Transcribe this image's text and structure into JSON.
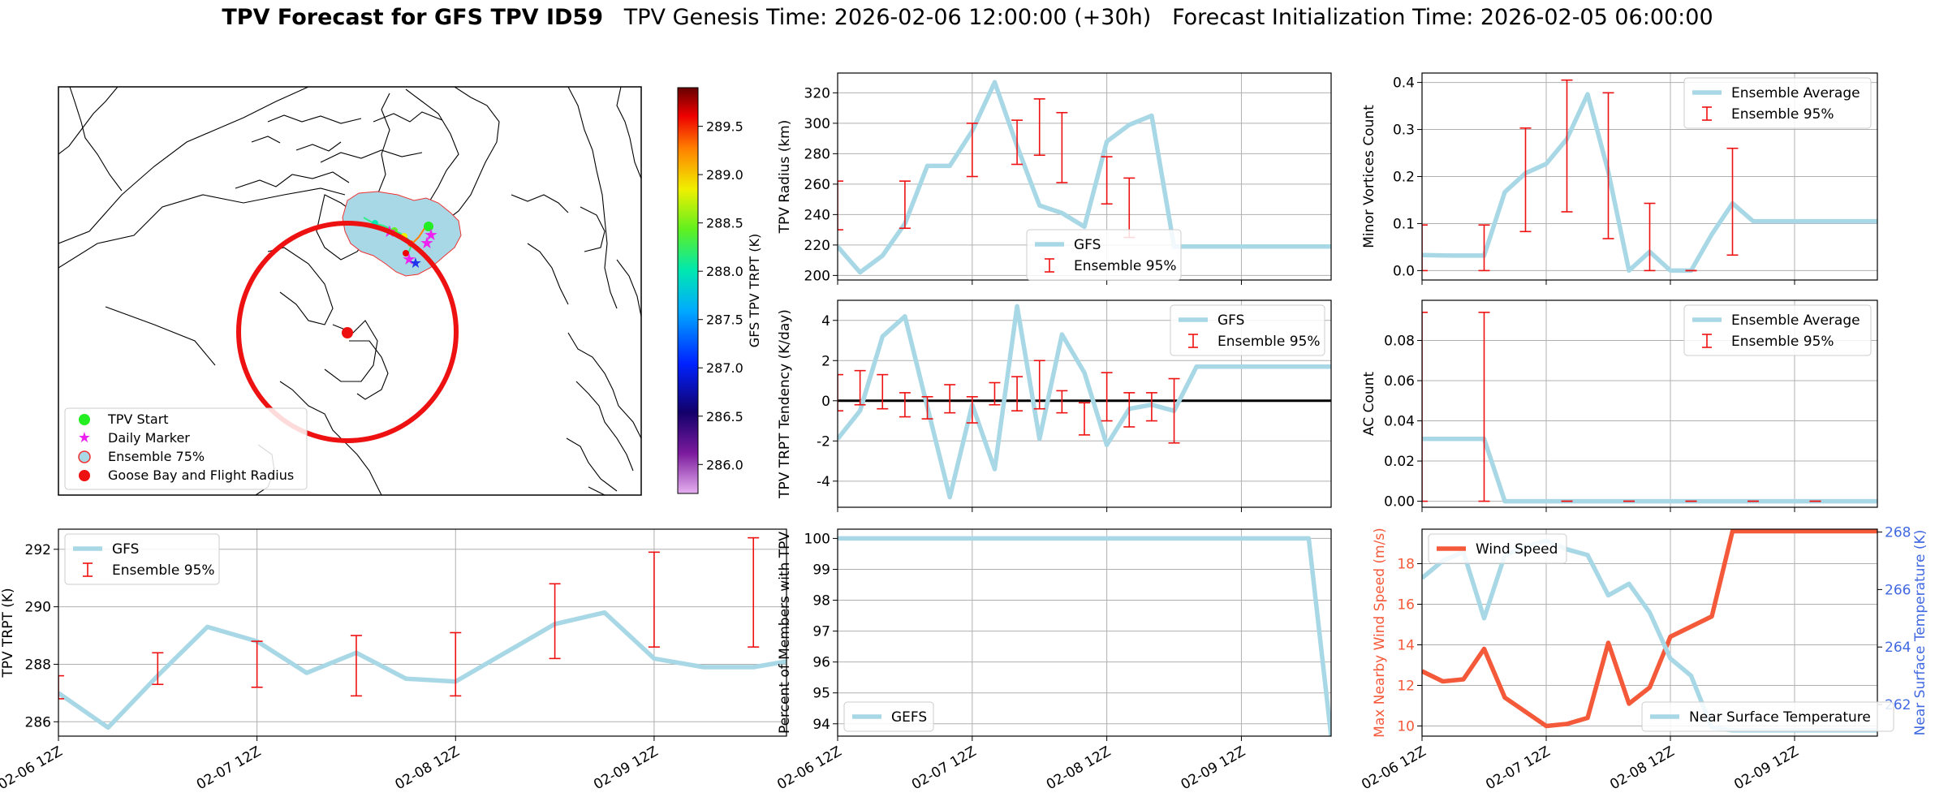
{
  "title": {
    "bold": "TPV Forecast for GFS TPV ID59",
    "genesis": "TPV Genesis Time: 2026-02-06 12:00:00 (+30h)",
    "init": "Forecast Initialization Time: 2026-02-05 06:00:00"
  },
  "time_ticks": [
    "02-06 12Z",
    "02-07 12Z",
    "02-08 12Z",
    "02-09 12Z"
  ],
  "map": {
    "colorbar_label": "GFS TPV TRPT (K)",
    "colorbar_ticks": [
      286.0,
      286.5,
      287.0,
      287.5,
      288.0,
      288.5,
      289.0,
      289.5
    ],
    "colorbar_range": [
      285.7,
      289.9
    ],
    "legend": [
      "TPV Start",
      "Daily Marker",
      "Ensemble 75%",
      "Goose Bay and Flight Radius"
    ],
    "colors": {
      "start": "#22ee22",
      "marker": "#ee22ee",
      "ensemble": "#a8d8e6",
      "goose": "#ee1111"
    }
  },
  "chart_data": [
    {
      "id": "trpt",
      "type": "line",
      "xlim": [
        0,
        11
      ],
      "ylim": [
        285.5,
        292.7
      ],
      "yticks": [
        286,
        288,
        290,
        292
      ],
      "ylabel": "TPV TRPT (K)",
      "legend": [
        "GFS",
        "Ensemble 95%"
      ],
      "legend_position": "top-left",
      "series": [
        {
          "name": "GFS",
          "x": [
            0,
            0.75,
            1.5,
            2.25,
            3,
            3.75,
            4.5,
            5.25,
            6,
            6.75,
            7.5,
            8.25,
            9,
            9.75,
            10.5,
            11
          ],
          "y": [
            287.0,
            285.8,
            287.6,
            289.3,
            288.8,
            287.7,
            288.4,
            287.5,
            287.4,
            288.4,
            289.4,
            289.8,
            288.2,
            287.9,
            287.9,
            288.1
          ]
        }
      ],
      "errorbars": [
        {
          "x": 0,
          "lo": 286.8,
          "hi": 287.6
        },
        {
          "x": 1.5,
          "lo": 287.3,
          "hi": 288.4
        },
        {
          "x": 3,
          "lo": 287.2,
          "hi": 288.8
        },
        {
          "x": 4.5,
          "lo": 286.9,
          "hi": 289.0
        },
        {
          "x": 6,
          "lo": 286.9,
          "hi": 289.1
        },
        {
          "x": 7.5,
          "lo": 288.2,
          "hi": 290.8
        },
        {
          "x": 9,
          "lo": 288.6,
          "hi": 291.9
        },
        {
          "x": 10.5,
          "lo": 288.6,
          "hi": 292.4
        }
      ]
    },
    {
      "id": "radius",
      "type": "line",
      "xlim": [
        0,
        11
      ],
      "ylim": [
        197,
        333
      ],
      "yticks": [
        200,
        220,
        240,
        260,
        280,
        300,
        320
      ],
      "ylabel": "TPV Radius (km)",
      "legend": [
        "GFS",
        "Ensemble 95%"
      ],
      "legend_position": "bottom-center",
      "series": [
        {
          "name": "GFS",
          "x": [
            0,
            0.5,
            1,
            1.5,
            2,
            2.5,
            3,
            3.5,
            4,
            4.5,
            5,
            5.5,
            6,
            6.5,
            7,
            7.5,
            8,
            8.5,
            9,
            9.5,
            10,
            10.5,
            11
          ],
          "y": [
            219,
            202,
            213,
            234,
            272,
            272,
            295,
            327,
            285,
            246,
            241,
            232,
            288,
            299,
            305,
            219,
            219,
            219,
            219,
            219,
            219,
            219,
            219
          ]
        }
      ],
      "errorbars": [
        {
          "x": 0,
          "lo": 230,
          "hi": 262
        },
        {
          "x": 1.5,
          "lo": 231,
          "hi": 262
        },
        {
          "x": 3,
          "lo": 265,
          "hi": 300
        },
        {
          "x": 4,
          "lo": 273,
          "hi": 302
        },
        {
          "x": 4.5,
          "lo": 279,
          "hi": 316
        },
        {
          "x": 5,
          "lo": 261,
          "hi": 307
        },
        {
          "x": 6,
          "lo": 247,
          "hi": 278
        },
        {
          "x": 6.5,
          "lo": 225,
          "hi": 264
        }
      ]
    },
    {
      "id": "tendency",
      "type": "line",
      "xlim": [
        0,
        11
      ],
      "ylim": [
        -5.3,
        5.0
      ],
      "yticks": [
        -4,
        -2,
        0,
        2,
        4
      ],
      "ylabel": "TPV TRPT Tendency (K/day)",
      "legend": [
        "GFS",
        "Ensemble 95%"
      ],
      "legend_position": "top-right",
      "series": [
        {
          "name": "GFS",
          "x": [
            0,
            0.5,
            1,
            1.5,
            2,
            2.5,
            3,
            3.5,
            4,
            4.5,
            5,
            5.5,
            6,
            6.5,
            7,
            7.5,
            8,
            8.5,
            9,
            9.5,
            10,
            10.5,
            11
          ],
          "y": [
            -1.9,
            -0.5,
            3.2,
            4.2,
            -0.3,
            -4.8,
            -0.2,
            -3.4,
            4.7,
            -1.9,
            3.3,
            1.4,
            -2.2,
            -0.4,
            -0.2,
            -0.5,
            1.7,
            1.7,
            1.7,
            1.7,
            1.7,
            1.7,
            1.7
          ]
        }
      ],
      "errorbars": [
        {
          "x": 0,
          "lo": -0.5,
          "hi": 1.3
        },
        {
          "x": 0.5,
          "lo": -0.2,
          "hi": 1.5
        },
        {
          "x": 1,
          "lo": -0.4,
          "hi": 1.3
        },
        {
          "x": 1.5,
          "lo": -0.8,
          "hi": 0.4
        },
        {
          "x": 2,
          "lo": -0.9,
          "hi": 0.2
        },
        {
          "x": 2.5,
          "lo": -0.6,
          "hi": 0.8
        },
        {
          "x": 3,
          "lo": -1.1,
          "hi": 0.2
        },
        {
          "x": 3.5,
          "lo": -0.2,
          "hi": 0.9
        },
        {
          "x": 4,
          "lo": -0.5,
          "hi": 1.2
        },
        {
          "x": 4.5,
          "lo": -0.4,
          "hi": 2.0
        },
        {
          "x": 5,
          "lo": -0.6,
          "hi": 0.5
        },
        {
          "x": 5.5,
          "lo": -1.7,
          "hi": -0.1
        },
        {
          "x": 6,
          "lo": -1.0,
          "hi": 1.4
        },
        {
          "x": 6.5,
          "lo": -1.3,
          "hi": 0.4
        },
        {
          "x": 7,
          "lo": -1.0,
          "hi": 0.4
        },
        {
          "x": 7.5,
          "lo": -2.1,
          "hi": 1.1
        }
      ],
      "zero_line": 0
    },
    {
      "id": "percent",
      "type": "line",
      "xlim": [
        0,
        11
      ],
      "ylim": [
        93.6,
        100.3
      ],
      "yticks": [
        94,
        95,
        96,
        97,
        98,
        99,
        100
      ],
      "ylabel": "Percent of Members with TPV",
      "legend": [
        "GEFS"
      ],
      "legend_position": "bottom-left",
      "series": [
        {
          "name": "GEFS",
          "x": [
            0,
            10.5,
            11
          ],
          "y": [
            100,
            100,
            93.6
          ]
        }
      ]
    },
    {
      "id": "minor",
      "type": "line",
      "xlim": [
        0,
        11
      ],
      "ylim": [
        -0.02,
        0.42
      ],
      "yticks": [
        0.0,
        0.1,
        0.2,
        0.3,
        0.4
      ],
      "ylabel": "Minor Vortices Count",
      "legend": [
        "Ensemble Average",
        "Ensemble 95%"
      ],
      "legend_position": "top-right",
      "series": [
        {
          "name": "Ensemble Average",
          "x": [
            0,
            0.75,
            1.5,
            2,
            2.5,
            3,
            3.5,
            4,
            4.5,
            5,
            5.5,
            6,
            6.5,
            7,
            7.5,
            8,
            8.5,
            9,
            9.5,
            10,
            10.5,
            11
          ],
          "y": [
            0.033,
            0.032,
            0.032,
            0.167,
            0.207,
            0.227,
            0.28,
            0.375,
            0.21,
            0.0,
            0.04,
            0.0,
            0.0,
            0.077,
            0.143,
            0.105,
            0.105,
            0.105,
            0.105,
            0.105,
            0.105,
            0.105
          ]
        }
      ],
      "errorbars": [
        {
          "x": 0,
          "lo": 0.0,
          "hi": 0.097
        },
        {
          "x": 1.5,
          "lo": 0.0,
          "hi": 0.097
        },
        {
          "x": 2.5,
          "lo": 0.083,
          "hi": 0.303
        },
        {
          "x": 3.5,
          "lo": 0.125,
          "hi": 0.405
        },
        {
          "x": 4.5,
          "lo": 0.068,
          "hi": 0.378
        },
        {
          "x": 5.5,
          "lo": 0.0,
          "hi": 0.143
        },
        {
          "x": 6.5,
          "lo": 0.0,
          "hi": 0.0
        },
        {
          "x": 7.5,
          "lo": 0.033,
          "hi": 0.26
        }
      ]
    },
    {
      "id": "ac",
      "type": "line",
      "xlim": [
        0,
        11
      ],
      "ylim": [
        -0.003,
        0.1
      ],
      "yticks": [
        0.0,
        0.02,
        0.04,
        0.06,
        0.08
      ],
      "ylabel": "AC Count",
      "legend": [
        "Ensemble Average",
        "Ensemble 95%"
      ],
      "legend_position": "top-right",
      "series": [
        {
          "name": "Ensemble Average",
          "x": [
            0,
            1.5,
            2,
            11
          ],
          "y": [
            0.031,
            0.031,
            0.0,
            0.0
          ]
        }
      ],
      "errorbars": [
        {
          "x": 0,
          "lo": 0.0,
          "hi": 0.094
        },
        {
          "x": 1.5,
          "lo": 0.0,
          "hi": 0.094
        },
        {
          "x": 3.5,
          "lo": 0.0,
          "hi": 0.0
        },
        {
          "x": 5,
          "lo": 0.0,
          "hi": 0.0
        },
        {
          "x": 6.5,
          "lo": 0.0,
          "hi": 0.0
        },
        {
          "x": 8,
          "lo": 0.0,
          "hi": 0.0
        },
        {
          "x": 9.5,
          "lo": 0.0,
          "hi": 0.0
        }
      ]
    },
    {
      "id": "wind",
      "type": "line",
      "xlim": [
        0,
        11
      ],
      "ylim": [
        9.5,
        19.7
      ],
      "yticks": [
        10,
        12,
        14,
        16,
        18
      ],
      "ylabel": "Max Nearby Wind Speed (m/s)",
      "ylim2": [
        260.9,
        268.1
      ],
      "yticks2": [
        262,
        264,
        266,
        268
      ],
      "ylabel2": "Near Surface Temperature (K)",
      "legend": [
        "Wind Speed",
        "Near Surface Temperature"
      ],
      "series": [
        {
          "name": "Wind Speed",
          "axis": "left",
          "x": [
            0,
            0.5,
            1,
            1.5,
            2,
            2.5,
            3,
            3.5,
            4,
            4.5,
            5,
            5.5,
            6,
            6.5,
            7,
            7.5,
            8,
            8.5,
            9,
            9.5,
            10,
            10.5,
            11
          ],
          "y": [
            12.7,
            12.2,
            12.3,
            13.8,
            11.4,
            10.7,
            10.0,
            10.1,
            10.4,
            14.1,
            11.1,
            11.9,
            14.4,
            14.9,
            15.4,
            19.6,
            19.6,
            19.6,
            19.6,
            19.6,
            19.6,
            19.6,
            19.6
          ]
        },
        {
          "name": "Near Surface Temperature",
          "axis": "right",
          "x": [
            0,
            0.5,
            1,
            1.5,
            2,
            2.5,
            3,
            3.5,
            4,
            4.5,
            5,
            5.5,
            6,
            6.5,
            7,
            7.5,
            8,
            8.5,
            9,
            9.5,
            10,
            10.5,
            11
          ],
          "y": [
            266.4,
            267.0,
            267.3,
            265.0,
            267.2,
            267.5,
            267.7,
            267.4,
            267.2,
            265.8,
            266.2,
            265.2,
            263.6,
            263.0,
            261.2,
            261.1,
            261.1,
            261.1,
            261.1,
            261.1,
            261.1,
            261.1,
            261.1
          ]
        }
      ]
    }
  ]
}
